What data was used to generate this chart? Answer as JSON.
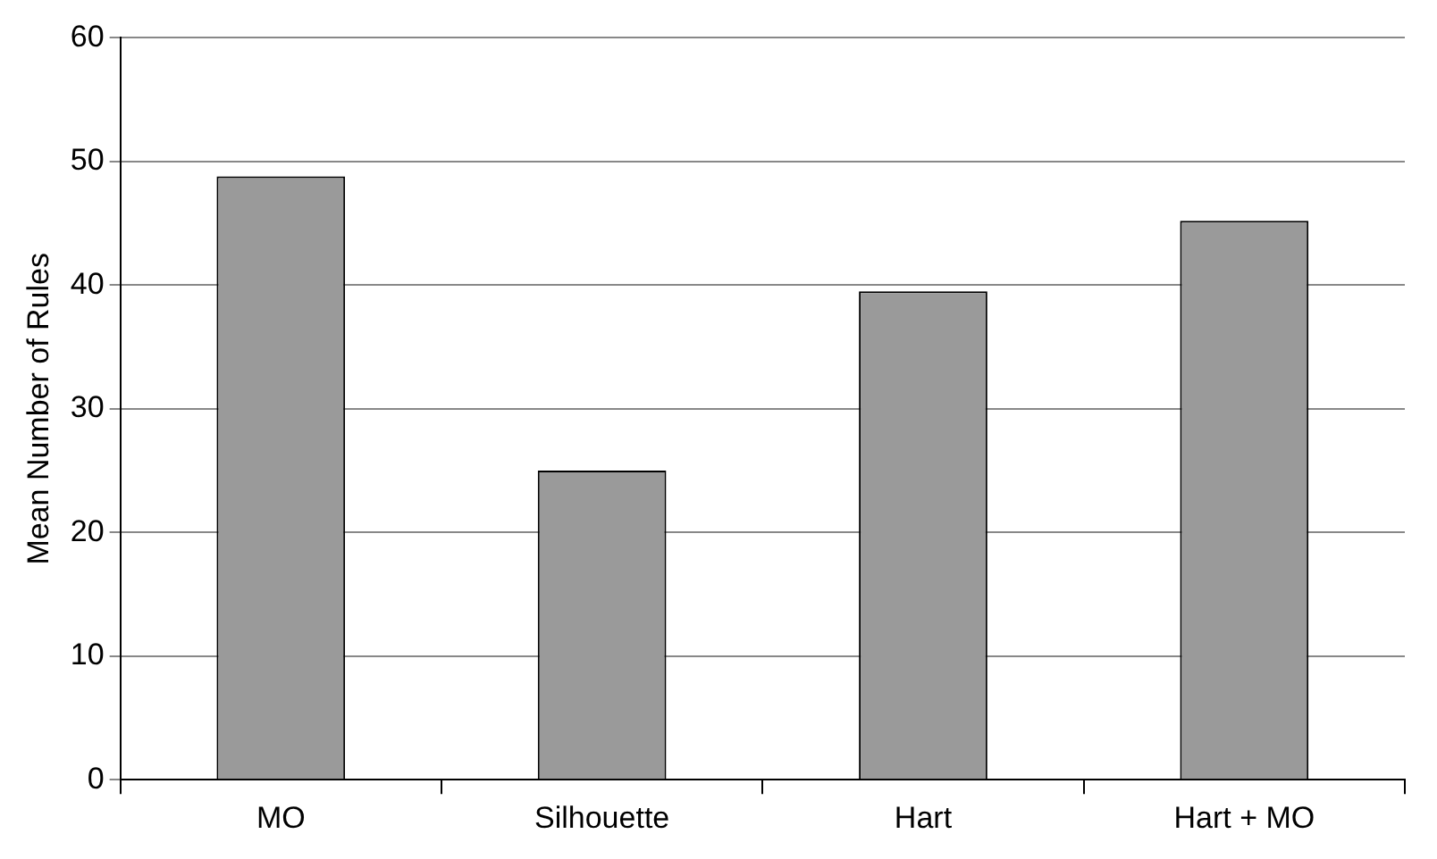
{
  "chart_data": {
    "type": "bar",
    "ylabel": "Mean Number of Rules",
    "categories": [
      "MO",
      "Silhouette",
      "Hart",
      "Hart + MO"
    ],
    "values": [
      48.8,
      25,
      39.5,
      45.2
    ],
    "color": "#9a9a9a",
    "ylim": [
      0,
      60
    ],
    "yticks": [
      0,
      10,
      20,
      30,
      40,
      50,
      60
    ],
    "grid": "y"
  }
}
